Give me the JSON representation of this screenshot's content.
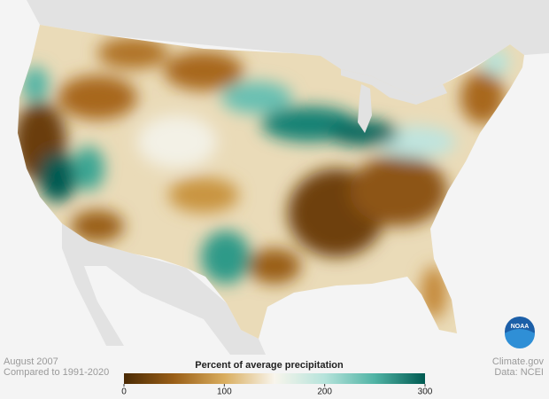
{
  "map": {
    "date": "August 2007",
    "baseline": "Compared to 1991-2020",
    "legend": {
      "title": "Percent of average precipitation",
      "ticks": [
        0,
        100,
        200,
        300
      ],
      "colors": [
        "#4a2a04",
        "#9a5f17",
        "#d9ad5e",
        "#f8f5ec",
        "#b6e3db",
        "#4fb3a4",
        "#005a51"
      ]
    }
  },
  "credits": {
    "source": "Climate.gov",
    "data": "Data: NCEI"
  },
  "logo": "NOAA"
}
